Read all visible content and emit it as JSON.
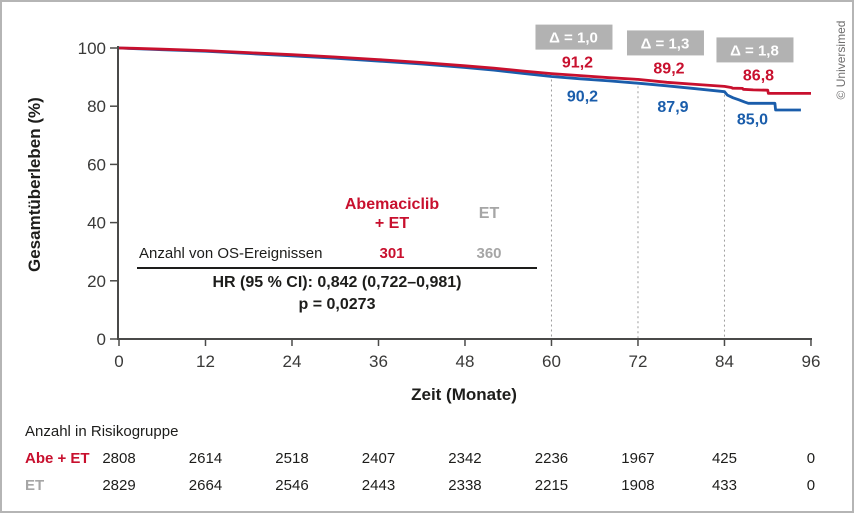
{
  "frame": {
    "copyright": "© Universimed"
  },
  "chart_data": {
    "type": "line",
    "title": "",
    "xlabel": "Zeit (Monate)",
    "ylabel": "Gesamtüberleben (%)",
    "xlim": [
      0,
      96
    ],
    "ylim": [
      0,
      100
    ],
    "x_ticks": [
      0,
      12,
      24,
      36,
      48,
      60,
      72,
      84,
      96
    ],
    "y_ticks": [
      0,
      20,
      40,
      60,
      80,
      100
    ],
    "grid": false,
    "legend_position": "none",
    "series": [
      {
        "name": "Abemaciclib + ET",
        "color": "#c8102e",
        "points": [
          [
            0,
            100
          ],
          [
            2,
            99.9
          ],
          [
            6,
            99.6
          ],
          [
            12,
            99.1
          ],
          [
            18,
            98.4
          ],
          [
            24,
            97.7
          ],
          [
            30,
            96.9
          ],
          [
            36,
            96.0
          ],
          [
            42,
            95.0
          ],
          [
            48,
            93.9
          ],
          [
            52,
            93.1
          ],
          [
            56,
            92.1
          ],
          [
            60,
            91.2
          ],
          [
            64,
            90.5
          ],
          [
            68,
            89.8
          ],
          [
            72,
            89.2
          ],
          [
            76,
            88.2
          ],
          [
            80,
            87.5
          ],
          [
            84,
            86.8
          ],
          [
            85,
            86.4
          ],
          [
            85.1,
            86.2
          ],
          [
            86.5,
            86.1
          ],
          [
            86.6,
            85.8
          ],
          [
            88,
            85.6
          ],
          [
            90,
            85.5
          ],
          [
            90.1,
            84.4
          ],
          [
            96,
            84.4
          ]
        ]
      },
      {
        "name": "ET",
        "color": "#1a5dab",
        "points": [
          [
            0,
            100
          ],
          [
            2,
            99.8
          ],
          [
            6,
            99.4
          ],
          [
            12,
            98.9
          ],
          [
            18,
            98.1
          ],
          [
            24,
            97.3
          ],
          [
            30,
            96.5
          ],
          [
            36,
            95.5
          ],
          [
            42,
            94.5
          ],
          [
            48,
            93.3
          ],
          [
            52,
            92.4
          ],
          [
            56,
            91.3
          ],
          [
            60,
            90.2
          ],
          [
            64,
            89.4
          ],
          [
            68,
            88.7
          ],
          [
            72,
            87.9
          ],
          [
            76,
            87.0
          ],
          [
            80,
            86.0
          ],
          [
            84,
            85.0
          ],
          [
            84.4,
            83.8
          ],
          [
            85.2,
            82.9
          ],
          [
            86,
            82.2
          ],
          [
            86.8,
            81.4
          ],
          [
            87.3,
            81.0
          ],
          [
            91,
            81.0
          ],
          [
            91.1,
            78.7
          ],
          [
            94.6,
            78.7
          ]
        ]
      }
    ],
    "milestones": [
      {
        "month": 60,
        "delta": "Δ = 1,0",
        "abe_et": "91,2",
        "et": "90,2"
      },
      {
        "month": 72,
        "delta": "Δ = 1,3",
        "abe_et": "89,2",
        "et": "87,9"
      },
      {
        "month": 84,
        "delta": "Δ = 1,8",
        "abe_et": "86,8",
        "et": "85,0"
      }
    ]
  },
  "stats_panel": {
    "arm1_name_line1": "Abemaciclib",
    "arm1_name_line2": "+ ET",
    "arm2_name": "ET",
    "events_label": "Anzahl von OS-Ereignissen",
    "arm1_events": "301",
    "arm2_events": "360",
    "hr_text": "HR (95 % CI): 0,842 (0,722–0,981)",
    "p_text": "p = 0,0273"
  },
  "risk_table": {
    "title": "Anzahl in Risikogruppe",
    "rows": [
      {
        "label": "Abe + ET",
        "color": "#c8102e",
        "values": [
          "2808",
          "2614",
          "2518",
          "2407",
          "2342",
          "2236",
          "1967",
          "425",
          "0"
        ]
      },
      {
        "label": "ET",
        "color": "#a6a6a6",
        "values": [
          "2829",
          "2664",
          "2546",
          "2443",
          "2338",
          "2215",
          "1908",
          "433",
          "0"
        ]
      }
    ]
  },
  "colors": {
    "abemaciclib_red": "#c8102e",
    "et_blue": "#1a5dab",
    "et_gray": "#a6a6a6",
    "delta_box_gray": "#b2b2b2",
    "axis_dark": "#4a4a49",
    "tick_label": "#3a3a39",
    "dotted_line": "#9d9d9d"
  }
}
